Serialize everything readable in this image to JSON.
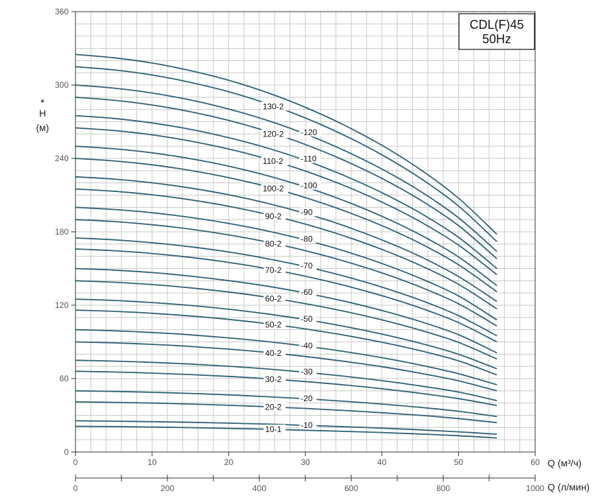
{
  "chart_data": {
    "type": "line",
    "badge": {
      "line1": "CDL(F)45",
      "line2": "50Hz"
    },
    "y_axis": {
      "label": "H",
      "unit": "(м)",
      "range": [
        0,
        360
      ],
      "ticks": [
        "0",
        "60",
        "120",
        "180",
        "240",
        "300",
        "360"
      ]
    },
    "x_axis": {
      "label": "Q (м³/ч)",
      "range": [
        0,
        60
      ],
      "ticks": [
        "0",
        "10",
        "20",
        "30",
        "40",
        "50",
        "60"
      ]
    },
    "x2_axis": {
      "label": "Q (л/мин)",
      "range": [
        0,
        1000
      ],
      "ticks": [
        "0",
        "200",
        "400",
        "600",
        "800",
        "1000"
      ]
    },
    "grid": true,
    "colors": {
      "curve": "#2c6277",
      "grid": "#c8c8c8",
      "axis": "#333333",
      "tick_text": "#555555"
    },
    "x": [
      0,
      5,
      10,
      15,
      20,
      25,
      30,
      35,
      40,
      45,
      50,
      55
    ],
    "series": [
      {
        "name": "10-1",
        "values": [
          21,
          20.8,
          20.4,
          19.9,
          19.3,
          18.6,
          17.8,
          16.9,
          15.9,
          14.7,
          13.3,
          11.5
        ]
      },
      {
        "name": "10",
        "values": [
          25.5,
          25.2,
          24.8,
          24.3,
          23.6,
          22.8,
          21.8,
          20.7,
          19.5,
          18.1,
          16.5,
          14.5
        ]
      },
      {
        "name": "20-2",
        "values": [
          41,
          40.6,
          40,
          39.2,
          38.2,
          37,
          35.6,
          34,
          32.1,
          30,
          27.3,
          24
        ]
      },
      {
        "name": "20",
        "values": [
          50,
          49.5,
          48.8,
          47.9,
          46.7,
          45.2,
          43.5,
          41.5,
          39.2,
          36.5,
          33.3,
          29
        ]
      },
      {
        "name": "30-2",
        "values": [
          66,
          65.4,
          64.5,
          63.3,
          61.8,
          59.9,
          57.6,
          54.9,
          51.7,
          48,
          43.6,
          38
        ]
      },
      {
        "name": "30",
        "values": [
          75,
          74.3,
          73.3,
          71.9,
          70.1,
          67.9,
          65.2,
          62,
          58.3,
          54,
          49,
          42
        ]
      },
      {
        "name": "40-2",
        "values": [
          90,
          89.2,
          88,
          86.3,
          84.1,
          81.4,
          78.1,
          74.2,
          69.7,
          64.4,
          58.2,
          50
        ]
      },
      {
        "name": "40",
        "values": [
          100,
          99.1,
          97.7,
          95.8,
          93.3,
          90.3,
          86.6,
          82.2,
          77.1,
          71.1,
          64,
          55
        ]
      },
      {
        "name": "50-2",
        "values": [
          116,
          115,
          113.4,
          111.2,
          108.4,
          104.9,
          100.6,
          95.6,
          89.7,
          82.8,
          74.5,
          63
        ]
      },
      {
        "name": "50",
        "values": [
          125,
          123.9,
          122.2,
          119.8,
          116.7,
          112.9,
          108.3,
          102.8,
          96.4,
          88.9,
          79.9,
          68
        ]
      },
      {
        "name": "60-2",
        "values": [
          140,
          138.8,
          136.9,
          134.2,
          130.8,
          126.5,
          121.3,
          115.2,
          108,
          99.6,
          89.6,
          76
        ]
      },
      {
        "name": "60",
        "values": [
          150,
          148.7,
          146.7,
          143.8,
          140.1,
          135.6,
          130,
          123.4,
          115.7,
          106.7,
          95.9,
          81
        ]
      },
      {
        "name": "70-2",
        "values": [
          166,
          164.6,
          162.3,
          159.1,
          155,
          149.9,
          143.7,
          136.4,
          127.8,
          117.8,
          105.8,
          90
        ]
      },
      {
        "name": "70",
        "values": [
          175,
          173.5,
          171.1,
          167.8,
          163.5,
          158.1,
          151.6,
          143.9,
          134.8,
          124.2,
          111.5,
          95
        ]
      },
      {
        "name": "80-2",
        "values": [
          190,
          188.4,
          185.8,
          182.2,
          177.5,
          171.7,
          164.6,
          156.2,
          146.4,
          134.9,
          121.2,
          103
        ]
      },
      {
        "name": "80",
        "values": [
          200,
          198.3,
          195.6,
          191.8,
          186.9,
          180.8,
          173.3,
          164.5,
          154.1,
          142,
          127.6,
          108
        ]
      },
      {
        "name": "90-2",
        "values": [
          215,
          213.2,
          210.3,
          206.2,
          200.9,
          194.3,
          186.3,
          176.8,
          165.6,
          152.6,
          137.1,
          117
        ]
      },
      {
        "name": "90",
        "values": [
          225,
          223.1,
          220.1,
          215.8,
          210.3,
          203.4,
          195,
          185.1,
          173.4,
          159.8,
          143.5,
          123
        ]
      },
      {
        "name": "100-2",
        "values": [
          240,
          238,
          234.8,
          230.2,
          224.3,
          217,
          208,
          197.4,
          185,
          170.5,
          153.1,
          131
        ]
      },
      {
        "name": "100",
        "values": [
          250,
          247.9,
          244.6,
          239.8,
          233.7,
          226,
          216.7,
          205.6,
          192.7,
          177.6,
          159.5,
          136
        ]
      },
      {
        "name": "110-2",
        "values": [
          265,
          262.8,
          259.3,
          254.2,
          247.7,
          239.6,
          229.7,
          218,
          204.3,
          188.3,
          169.1,
          145
        ]
      },
      {
        "name": "110",
        "values": [
          275,
          272.7,
          269,
          263.8,
          257,
          248.6,
          238.4,
          226.2,
          212,
          195.4,
          175.5,
          150
        ]
      },
      {
        "name": "120-2",
        "values": [
          290,
          287.6,
          283.7,
          278.2,
          271.1,
          262.2,
          251.4,
          238.6,
          223.6,
          206.1,
          185.1,
          158
        ]
      },
      {
        "name": "120",
        "values": [
          300,
          297.5,
          293.5,
          287.8,
          280.4,
          271.2,
          260,
          246.8,
          231.3,
          213.2,
          191.5,
          164
        ]
      },
      {
        "name": "130-2",
        "values": [
          315,
          312.4,
          308.2,
          302.2,
          294.5,
          284.8,
          273.1,
          259.2,
          242.9,
          223.9,
          201.1,
          172
        ]
      },
      {
        "name": "130",
        "values": [
          325,
          322.3,
          318,
          311.8,
          303.9,
          293.9,
          281.8,
          267.5,
          250.7,
          231,
          207.5,
          178
        ]
      }
    ],
    "labels": [
      {
        "text": "10-1",
        "series": "10-1",
        "x": 26,
        "side": "left"
      },
      {
        "text": "-10",
        "series": "10",
        "x": 29.4,
        "side": "right"
      },
      {
        "text": "20-2",
        "series": "20-2",
        "x": 26,
        "side": "left"
      },
      {
        "text": "-20",
        "series": "20",
        "x": 29.4,
        "side": "right"
      },
      {
        "text": "30-2",
        "series": "30-2",
        "x": 26,
        "side": "left"
      },
      {
        "text": "-30",
        "series": "30",
        "x": 29.4,
        "side": "right"
      },
      {
        "text": "40-2",
        "series": "40-2",
        "x": 26,
        "side": "left"
      },
      {
        "text": "-40",
        "series": "40",
        "x": 29.4,
        "side": "right"
      },
      {
        "text": "50-2",
        "series": "50-2",
        "x": 26,
        "side": "left"
      },
      {
        "text": "-50",
        "series": "50",
        "x": 29.4,
        "side": "right"
      },
      {
        "text": "60-2",
        "series": "60-2",
        "x": 26,
        "side": "left"
      },
      {
        "text": "-60",
        "series": "60",
        "x": 29.4,
        "side": "right"
      },
      {
        "text": "70-2",
        "series": "70-2",
        "x": 26,
        "side": "left"
      },
      {
        "text": "-70",
        "series": "70",
        "x": 29.4,
        "side": "right"
      },
      {
        "text": "80-2",
        "series": "80-2",
        "x": 26,
        "side": "left"
      },
      {
        "text": "-80",
        "series": "80",
        "x": 29.4,
        "side": "right"
      },
      {
        "text": "90-2",
        "series": "90-2",
        "x": 26,
        "side": "left"
      },
      {
        "text": "-90",
        "series": "90",
        "x": 29.4,
        "side": "right"
      },
      {
        "text": "100-2",
        "series": "100-2",
        "x": 26,
        "side": "left"
      },
      {
        "text": "-100",
        "series": "100",
        "x": 29.4,
        "side": "right"
      },
      {
        "text": "110-2",
        "series": "110-2",
        "x": 26,
        "side": "left"
      },
      {
        "text": "-110",
        "series": "110",
        "x": 29.4,
        "side": "right"
      },
      {
        "text": "120-2",
        "series": "120-2",
        "x": 26,
        "side": "left"
      },
      {
        "text": "-120",
        "series": "120",
        "x": 29.4,
        "side": "right"
      },
      {
        "text": "130-2",
        "series": "130-2",
        "x": 26,
        "side": "left"
      }
    ]
  }
}
